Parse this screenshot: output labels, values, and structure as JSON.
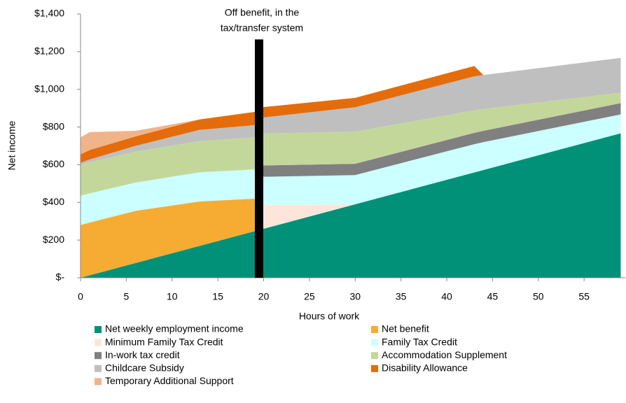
{
  "chart_data": {
    "type": "stacked_area",
    "x_label": "Hours of work",
    "y_label": "Net income",
    "x": [
      0,
      1,
      6,
      13,
      19,
      20,
      30,
      43,
      44,
      59
    ],
    "xlim": [
      0,
      59.5
    ],
    "xticks": [
      0,
      5,
      10,
      15,
      20,
      25,
      30,
      35,
      40,
      45,
      50,
      55
    ],
    "ylim": [
      0,
      1400
    ],
    "yticks": [
      {
        "value": 0,
        "label": "$-"
      },
      {
        "value": 200,
        "label": "$200"
      },
      {
        "value": 400,
        "label": "$400"
      },
      {
        "value": 600,
        "label": "$600"
      },
      {
        "value": 800,
        "label": "$800"
      },
      {
        "value": 1000,
        "label": "$1,000"
      },
      {
        "value": 1200,
        "label": "$1,200"
      },
      {
        "value": 1400,
        "label": "$1,400"
      }
    ],
    "annotation": {
      "lines": [
        "Off benefit, in the",
        "tax/transfer system"
      ],
      "x": 19.5,
      "y": 1265
    },
    "series": [
      {
        "name": "Net weekly employment income",
        "color": "#009178",
        "values": [
          0,
          13,
          78,
          169,
          247,
          260,
          390,
          559,
          572,
          767
        ]
      },
      {
        "name": "Net benefit",
        "color": "#f6ab33",
        "values": [
          280,
          280,
          277,
          236,
          173,
          0,
          0,
          0,
          0,
          0
        ]
      },
      {
        "name": "Minimum Family Tax Credit",
        "color": "#fde6d9",
        "values": [
          0,
          0,
          0,
          0,
          0,
          126,
          0,
          0,
          0,
          0
        ]
      },
      {
        "name": "Family Tax Credit",
        "color": "#ccffff",
        "values": [
          155,
          155,
          150,
          155,
          155,
          150,
          155,
          150,
          148,
          100
        ]
      },
      {
        "name": "In-work tax credit",
        "color": "#808080",
        "values": [
          0,
          0,
          0,
          0,
          0,
          60,
          60,
          60,
          60,
          60
        ]
      },
      {
        "name": "Accommodation Supplement",
        "color": "#c4d79b",
        "values": [
          165,
          165,
          165,
          165,
          170,
          170,
          170,
          120,
          116,
          55
        ]
      },
      {
        "name": "Childcare Subsidy",
        "color": "#bfbfbf",
        "values": [
          10,
          15,
          30,
          60,
          65,
          85,
          130,
          180,
          180,
          185
        ]
      },
      {
        "name": "Disability Allowance",
        "color": "#e46c0a",
        "values": [
          45,
          50,
          50,
          55,
          70,
          55,
          50,
          55,
          0,
          0
        ]
      },
      {
        "name": "Temporary Additional Support",
        "color": "#f0b48a",
        "values": [
          90,
          95,
          30,
          0,
          0,
          0,
          0,
          0,
          0,
          0
        ]
      }
    ]
  }
}
